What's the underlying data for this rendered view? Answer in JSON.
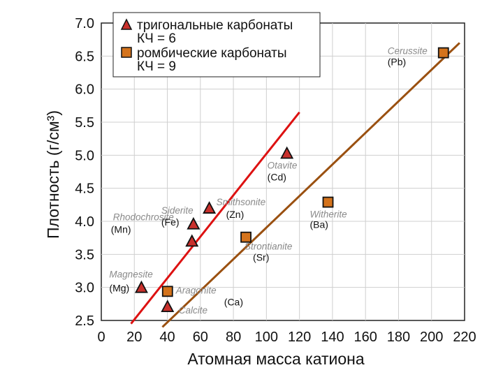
{
  "chart_data": {
    "type": "scatter",
    "xlabel": "Атомная масса катиона",
    "ylabel": "Плотность (г/см³)",
    "xlim": [
      0,
      220
    ],
    "ylim": [
      2.5,
      7.0
    ],
    "x_ticks": [
      "0",
      "20",
      "40",
      "60",
      "80",
      "100",
      "120",
      "140",
      "160",
      "180",
      "200",
      "220"
    ],
    "y_ticks": [
      "2.5",
      "3.0",
      "3.5",
      "4.0",
      "4.5",
      "5.0",
      "5.5",
      "6.0",
      "6.5",
      "7.0"
    ],
    "legend": [
      {
        "label": "тригональные карбонаты",
        "sublabel": "КЧ = 6",
        "marker": "triangle"
      },
      {
        "label": "ромбические карбонаты",
        "sublabel": "КЧ = 9",
        "marker": "square"
      }
    ],
    "series": [
      {
        "name": "тригональные карбонаты",
        "marker": "triangle",
        "color": "#cc2020",
        "points": [
          {
            "x": 24.3,
            "y": 3.0,
            "mineral": "Magnesite",
            "element": "(Mg)"
          },
          {
            "x": 40.1,
            "y": 2.71,
            "mineral": "Calcite",
            "element": ""
          },
          {
            "x": 54.9,
            "y": 3.7,
            "mineral": "Rhodochrosite",
            "element": "(Mn)"
          },
          {
            "x": 55.8,
            "y": 3.96,
            "mineral": "Siderite",
            "element": "(Fe)"
          },
          {
            "x": 65.4,
            "y": 4.2,
            "mineral": "Smithsonite",
            "element": "(Zn)"
          },
          {
            "x": 112.4,
            "y": 5.03,
            "mineral": "Otavite",
            "element": "(Cd)"
          }
        ],
        "trendline": {
          "from": [
            18,
            2.45
          ],
          "to": [
            120,
            5.65
          ]
        }
      },
      {
        "name": "ромбические карбонаты",
        "marker": "square",
        "color": "#d97a1e",
        "points": [
          {
            "x": 40.1,
            "y": 2.94,
            "mineral": "Aragonite",
            "element": "(Ca)"
          },
          {
            "x": 87.6,
            "y": 3.76,
            "mineral": "Strontianite",
            "element": "(Sr)"
          },
          {
            "x": 137.3,
            "y": 4.29,
            "mineral": "Witherite",
            "element": "(Ba)"
          },
          {
            "x": 207.2,
            "y": 6.55,
            "mineral": "Cerussite",
            "element": "(Pb)"
          }
        ],
        "trendline": {
          "from": [
            37,
            2.4
          ],
          "to": [
            217,
            6.7
          ]
        }
      }
    ],
    "colors": {
      "trigonal_line": "#dd1111",
      "rhombic_line": "#9a5010",
      "triangle_fill": "#c9302c",
      "square_fill": "#d4731c"
    }
  }
}
